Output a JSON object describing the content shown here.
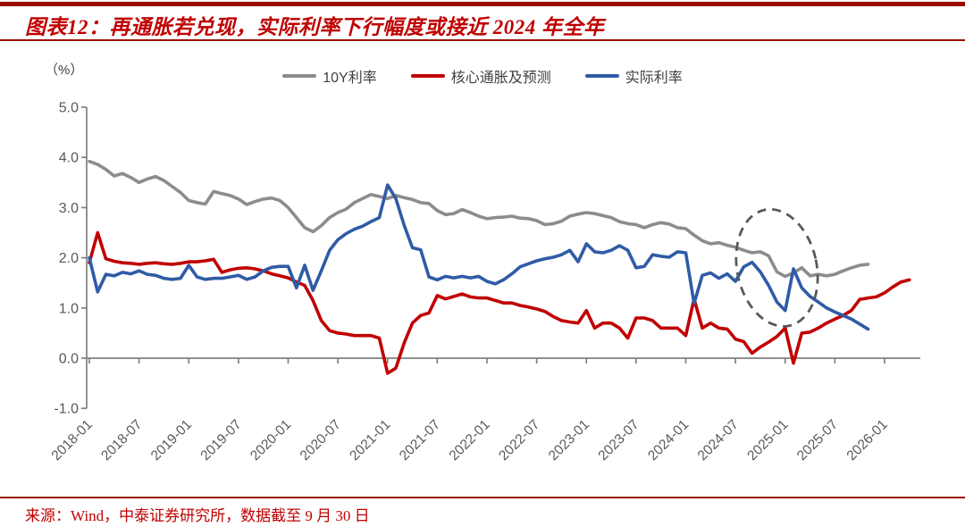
{
  "header": {
    "title": "图表12：再通胀若兑现，实际利率下行幅度或接近 2024 年全年"
  },
  "footer": {
    "source": "来源：Wind，中泰证券研究所，数据截至 9 月 30 日"
  },
  "colors": {
    "accent_red": "#c00000",
    "rule_red": "#9a0b00",
    "axis_gray": "#808080",
    "tick_label_gray": "#595959",
    "legend_text": "#3f3f3f"
  },
  "chart_data": {
    "type": "line",
    "unit_label": "（%）",
    "x_start_month": "2018-01",
    "x_tick_labels": [
      "2018-01",
      "2018-07",
      "2019-01",
      "2019-07",
      "2020-01",
      "2020-07",
      "2021-01",
      "2021-07",
      "2022-01",
      "2022-07",
      "2023-01",
      "2023-07",
      "2024-01",
      "2024-07",
      "2025-01",
      "2025-07",
      "2026-01"
    ],
    "y_ticks": [
      "5.0",
      "4.0",
      "3.0",
      "2.0",
      "1.0",
      "0.0",
      "-1.0"
    ],
    "ylim": [
      -1.0,
      5.0
    ],
    "grid": "none",
    "legend_position": "top-center",
    "series": [
      {
        "name": "10Y利率",
        "color": "#8c8c8c",
        "values": [
          3.92,
          3.86,
          3.76,
          3.63,
          3.68,
          3.6,
          3.5,
          3.57,
          3.62,
          3.54,
          3.42,
          3.3,
          3.14,
          3.1,
          3.07,
          3.32,
          3.28,
          3.24,
          3.17,
          3.06,
          3.12,
          3.17,
          3.19,
          3.14,
          3.0,
          2.8,
          2.6,
          2.52,
          2.64,
          2.8,
          2.9,
          2.97,
          3.1,
          3.18,
          3.26,
          3.22,
          3.18,
          3.24,
          3.2,
          3.16,
          3.1,
          3.08,
          2.94,
          2.86,
          2.88,
          2.96,
          2.9,
          2.83,
          2.78,
          2.8,
          2.81,
          2.83,
          2.79,
          2.78,
          2.74,
          2.66,
          2.68,
          2.73,
          2.83,
          2.87,
          2.9,
          2.88,
          2.84,
          2.8,
          2.72,
          2.68,
          2.66,
          2.6,
          2.66,
          2.7,
          2.67,
          2.6,
          2.58,
          2.45,
          2.34,
          2.28,
          2.3,
          2.25,
          2.21,
          2.15,
          2.1,
          2.12,
          2.04,
          1.72,
          1.63,
          1.7,
          1.8,
          1.64,
          1.67,
          1.64,
          1.67,
          1.74,
          1.8,
          1.85,
          1.87
        ]
      },
      {
        "name": "核心通胀及预测",
        "color": "#c00000",
        "values": [
          1.9,
          2.5,
          1.98,
          1.93,
          1.9,
          1.89,
          1.87,
          1.89,
          1.9,
          1.88,
          1.87,
          1.89,
          1.92,
          1.92,
          1.94,
          1.97,
          1.71,
          1.76,
          1.79,
          1.8,
          1.78,
          1.74,
          1.68,
          1.64,
          1.6,
          1.52,
          1.45,
          1.15,
          0.75,
          0.55,
          0.5,
          0.48,
          0.45,
          0.45,
          0.45,
          0.4,
          -0.3,
          -0.2,
          0.3,
          0.7,
          0.85,
          0.9,
          1.25,
          1.18,
          1.23,
          1.28,
          1.22,
          1.2,
          1.2,
          1.15,
          1.1,
          1.1,
          1.05,
          1.02,
          0.98,
          0.93,
          0.83,
          0.75,
          0.72,
          0.7,
          0.95,
          0.6,
          0.7,
          0.7,
          0.6,
          0.4,
          0.8,
          0.8,
          0.75,
          0.6,
          0.6,
          0.6,
          0.45,
          1.18,
          0.6,
          0.7,
          0.6,
          0.58,
          0.38,
          0.33,
          0.1,
          0.22,
          0.32,
          0.43,
          0.6,
          -0.1,
          0.5,
          0.52,
          0.6,
          0.7,
          0.78,
          0.85,
          0.95,
          1.17,
          1.2,
          1.22,
          1.3,
          1.42,
          1.52,
          1.56
        ]
      },
      {
        "name": "实际利率",
        "color": "#2f5ba7",
        "values": [
          2.0,
          1.32,
          1.67,
          1.64,
          1.71,
          1.68,
          1.74,
          1.67,
          1.65,
          1.59,
          1.57,
          1.59,
          1.85,
          1.62,
          1.57,
          1.59,
          1.59,
          1.62,
          1.65,
          1.57,
          1.62,
          1.74,
          1.81,
          1.83,
          1.83,
          1.4,
          1.85,
          1.35,
          1.74,
          2.15,
          2.36,
          2.48,
          2.57,
          2.63,
          2.72,
          2.8,
          3.45,
          3.18,
          2.65,
          2.2,
          2.16,
          1.62,
          1.56,
          1.63,
          1.6,
          1.63,
          1.6,
          1.63,
          1.53,
          1.48,
          1.56,
          1.68,
          1.82,
          1.88,
          1.94,
          1.98,
          2.01,
          2.06,
          2.15,
          1.92,
          2.28,
          2.12,
          2.1,
          2.15,
          2.24,
          2.15,
          1.8,
          1.83,
          2.06,
          2.03,
          2.01,
          2.12,
          2.1,
          1.09,
          1.65,
          1.7,
          1.59,
          1.68,
          1.53,
          1.82,
          1.91,
          1.72,
          1.45,
          1.12,
          0.95,
          1.78,
          1.4,
          1.23,
          1.12,
          1.0,
          0.92,
          0.85,
          0.78,
          0.68,
          0.58
        ]
      }
    ],
    "annotation": {
      "type": "dashed-ellipse",
      "note": "circles the late-2024 to early-2025 decline",
      "month_center_index": 83,
      "value_center": 1.8,
      "month_radius": 4.8,
      "value_radius": 1.18,
      "rotation_deg": -12,
      "color": "#595959"
    }
  }
}
